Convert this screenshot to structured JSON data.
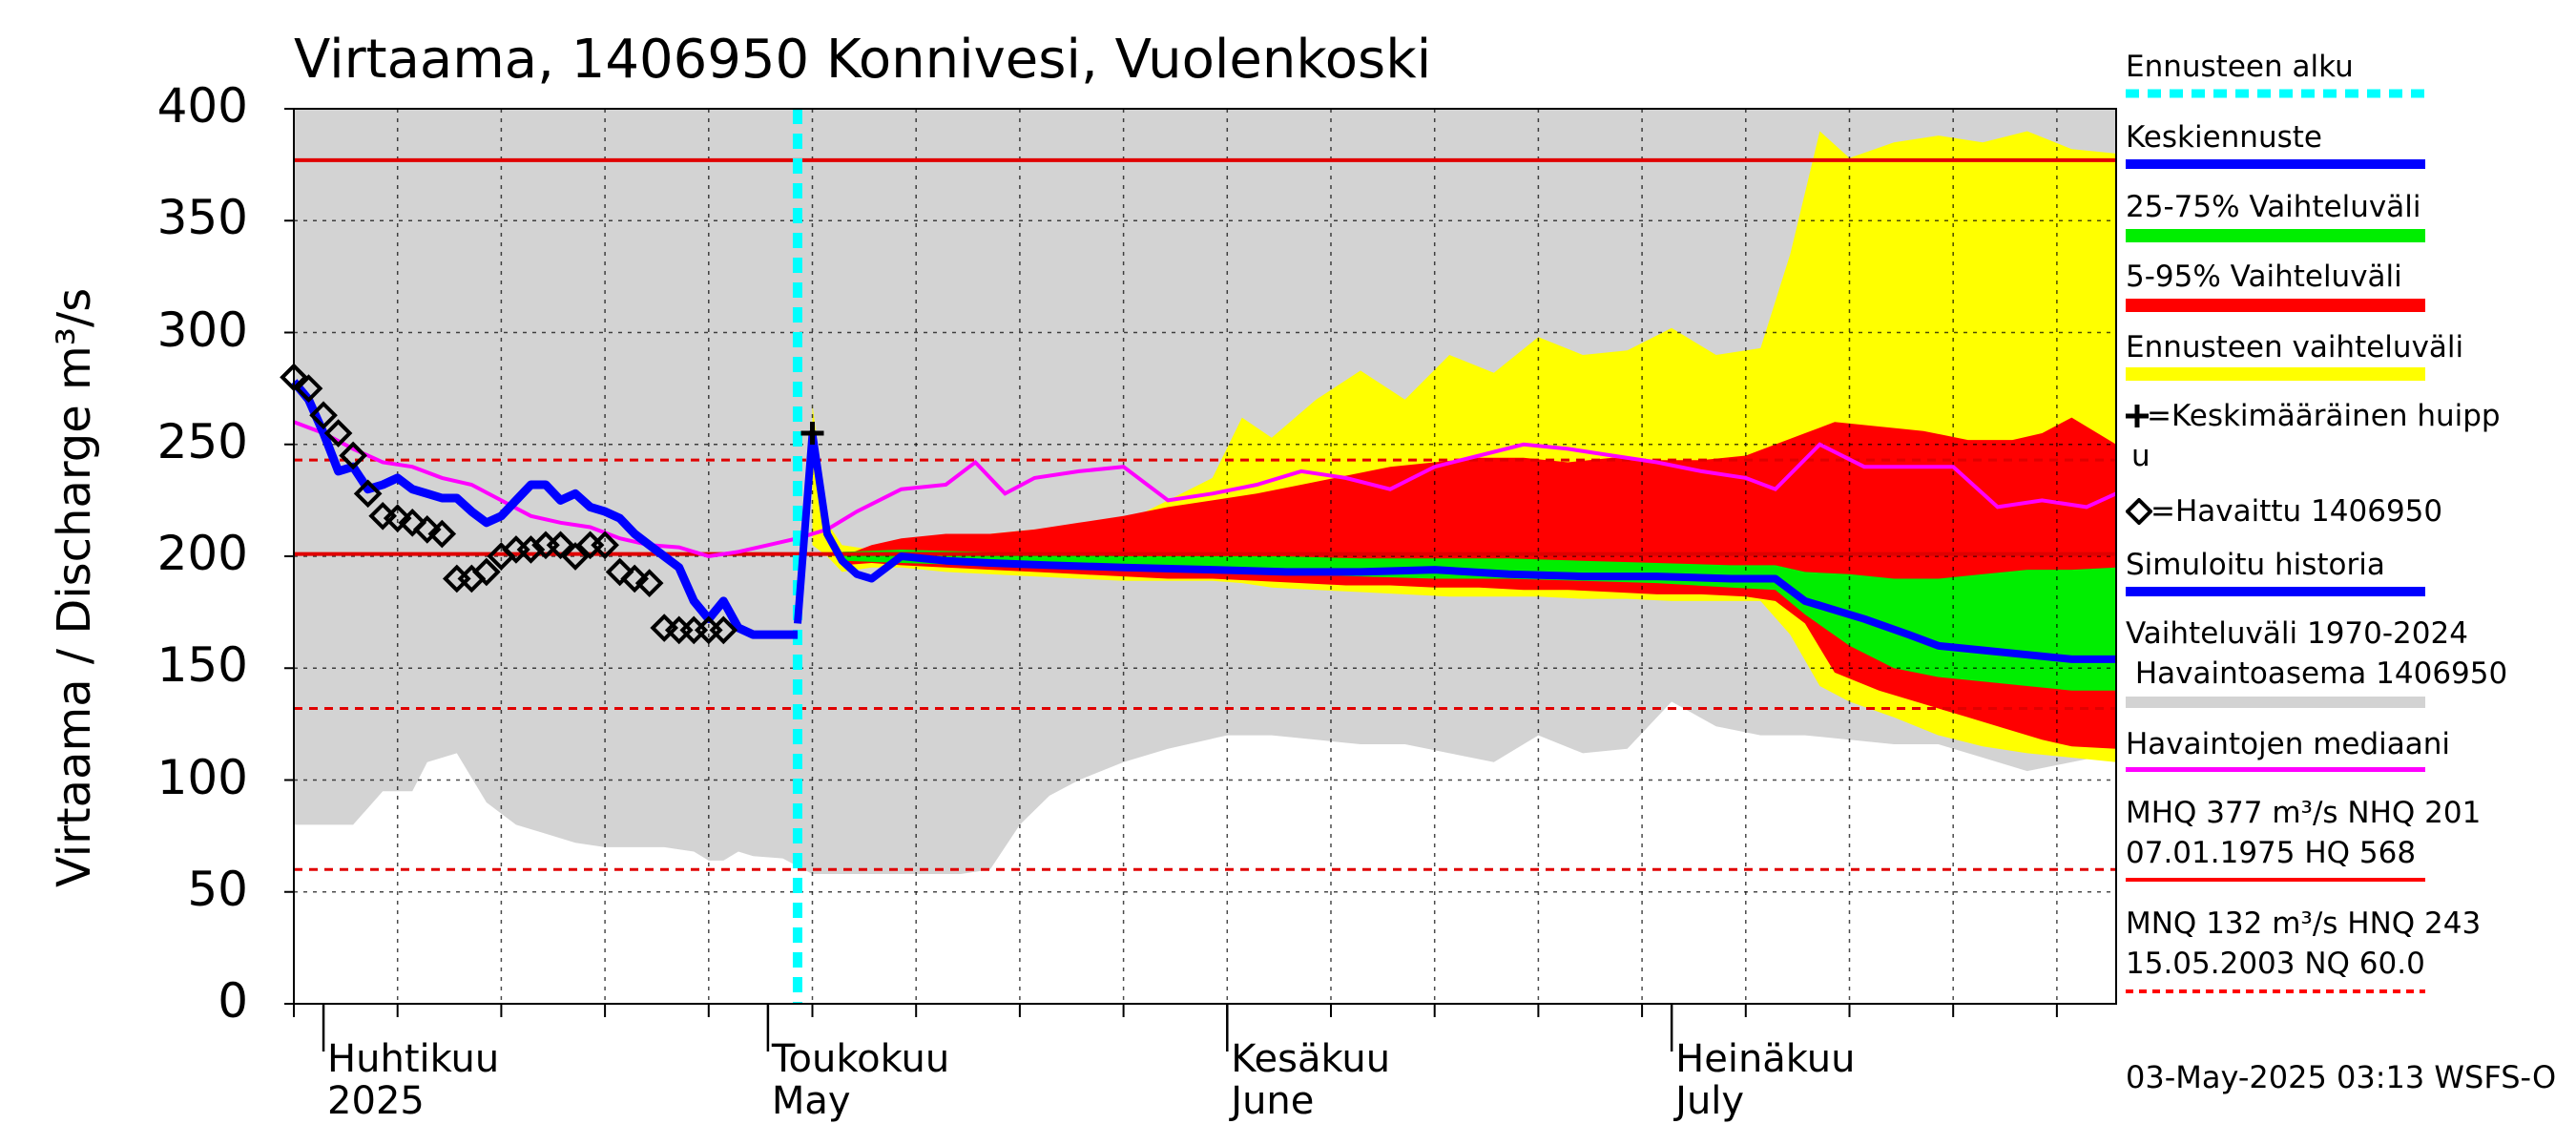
{
  "chart_data": {
    "type": "area",
    "title": "Virtaama, 1406950 Konnivesi, Vuolenkoski",
    "ylabel": "Virtaama / Discharge    m³/s",
    "ylim": [
      0,
      400
    ],
    "yticks": [
      "400",
      "350",
      "300",
      "250",
      "200",
      "150",
      "100",
      "50",
      "0"
    ],
    "xlim": [
      "2025-03-30",
      "2025-07-31"
    ],
    "month_labels": [
      {
        "date": "2025-04-01",
        "fi": "Huhtikuu",
        "en": "2025"
      },
      {
        "date": "2025-05-01",
        "fi": "Toukokuu",
        "en": "May"
      },
      {
        "date": "2025-06-01",
        "fi": "Kesäkuu",
        "en": "June"
      },
      {
        "date": "2025-07-01",
        "fi": "Heinäkuu",
        "en": "July"
      }
    ],
    "grid": true,
    "forecast_start": "2025-05-03",
    "reference_lines": [
      {
        "name": "MHQ",
        "value": 377,
        "style": "solid"
      },
      {
        "name": "NHQ",
        "value": 201,
        "style": "solid"
      },
      {
        "name": "HNQ",
        "value": 243,
        "style": "dashed"
      },
      {
        "name": "MNQ",
        "value": 132,
        "style": "dashed"
      },
      {
        "name": "NQ",
        "value": 60.0,
        "style": "dashed"
      }
    ],
    "historical_range": {
      "name": "Vaihteluväli 1970-2024 Havaintoasema 1406950",
      "x": [
        "2025-03-30",
        "2025-04-01",
        "2025-04-03",
        "2025-04-05",
        "2025-04-06",
        "2025-04-07",
        "2025-04-08",
        "2025-04-10",
        "2025-04-12",
        "2025-04-14",
        "2025-04-16",
        "2025-04-18",
        "2025-04-20",
        "2025-04-22",
        "2025-04-24",
        "2025-04-26",
        "2025-04-27",
        "2025-04-28",
        "2025-04-29",
        "2025-04-30",
        "2025-05-02",
        "2025-05-04",
        "2025-05-06",
        "2025-05-08",
        "2025-05-10",
        "2025-05-12",
        "2025-05-14",
        "2025-05-16",
        "2025-05-18",
        "2025-05-20",
        "2025-05-22",
        "2025-05-25",
        "2025-05-28",
        "2025-06-01",
        "2025-06-04",
        "2025-06-07",
        "2025-06-10",
        "2025-06-13",
        "2025-06-16",
        "2025-06-19",
        "2025-06-22",
        "2025-06-25",
        "2025-06-28",
        "2025-07-01",
        "2025-07-04",
        "2025-07-07",
        "2025-07-10",
        "2025-07-13",
        "2025-07-16",
        "2025-07-19",
        "2025-07-22",
        "2025-07-25",
        "2025-07-28",
        "2025-07-31"
      ],
      "low": [
        80,
        80,
        80,
        95,
        95,
        95,
        108,
        112,
        90,
        80,
        76,
        72,
        70,
        70,
        70,
        68,
        64,
        64,
        68,
        66,
        65,
        58,
        58,
        58,
        58,
        58,
        58,
        60,
        80,
        93,
        100,
        108,
        114,
        120,
        120,
        118,
        116,
        116,
        112,
        108,
        120,
        112,
        114,
        135,
        124,
        120,
        120,
        118,
        116,
        116,
        110,
        104,
        108,
        112
      ],
      "high": [
        400,
        400,
        400,
        400,
        400,
        400,
        400,
        400,
        400,
        400,
        400,
        400,
        400,
        400,
        400,
        400,
        400,
        400,
        400,
        400,
        400,
        400,
        400,
        400,
        400,
        400,
        400,
        400,
        400,
        400,
        400,
        400,
        400,
        400,
        400,
        400,
        400,
        400,
        400,
        400,
        400,
        400,
        400,
        400,
        400,
        400,
        400,
        400,
        400,
        400,
        400,
        400,
        400,
        400
      ]
    },
    "series": [
      {
        "name": "Ennusteen vaihteluväli",
        "color": "#ffff00",
        "x": [
          "2025-05-04",
          "2025-05-05",
          "2025-05-06",
          "2025-05-08",
          "2025-05-10",
          "2025-05-13",
          "2025-05-16",
          "2025-05-19",
          "2025-05-22",
          "2025-05-25",
          "2025-05-28",
          "2025-05-31",
          "2025-06-02",
          "2025-06-04",
          "2025-06-07",
          "2025-06-10",
          "2025-06-13",
          "2025-06-16",
          "2025-06-19",
          "2025-06-22",
          "2025-06-25",
          "2025-06-28",
          "2025-07-01",
          "2025-07-04",
          "2025-07-07",
          "2025-07-09",
          "2025-07-11",
          "2025-07-13",
          "2025-07-16",
          "2025-07-19",
          "2025-07-22",
          "2025-07-25",
          "2025-07-28",
          "2025-07-31"
        ],
        "low": [
          205,
          200,
          193,
          195,
          195,
          193,
          192,
          191,
          190,
          189,
          189,
          189,
          188,
          186,
          185,
          184,
          183,
          182,
          182,
          182,
          181,
          181,
          180,
          180,
          180,
          165,
          142,
          135,
          128,
          120,
          115,
          112,
          110,
          108
        ],
        "high": [
          268,
          215,
          205,
          203,
          205,
          208,
          210,
          212,
          212,
          215,
          225,
          235,
          262,
          253,
          270,
          283,
          270,
          290,
          282,
          298,
          290,
          292,
          302,
          290,
          293,
          335,
          390,
          378,
          385,
          388,
          385,
          390,
          382,
          380
        ]
      },
      {
        "name": "5-95% Vaihteluväli",
        "color": "#ff0000",
        "x": [
          "2025-05-06",
          "2025-05-08",
          "2025-05-10",
          "2025-05-13",
          "2025-05-16",
          "2025-05-19",
          "2025-05-22",
          "2025-05-25",
          "2025-05-28",
          "2025-05-31",
          "2025-06-03",
          "2025-06-06",
          "2025-06-09",
          "2025-06-12",
          "2025-06-15",
          "2025-06-18",
          "2025-06-21",
          "2025-06-24",
          "2025-06-27",
          "2025-06-30",
          "2025-07-03",
          "2025-07-06",
          "2025-07-08",
          "2025-07-10",
          "2025-07-12",
          "2025-07-15",
          "2025-07-18",
          "2025-07-21",
          "2025-07-24",
          "2025-07-26",
          "2025-07-28",
          "2025-07-31"
        ],
        "low": [
          196,
          197,
          196,
          195,
          194,
          193,
          192,
          191,
          190,
          190,
          189,
          188,
          187,
          187,
          186,
          186,
          185,
          185,
          184,
          183,
          183,
          182,
          180,
          170,
          148,
          140,
          134,
          128,
          122,
          118,
          115,
          114
        ],
        "high": [
          200,
          205,
          208,
          210,
          210,
          212,
          215,
          218,
          222,
          225,
          228,
          232,
          236,
          240,
          242,
          244,
          244,
          242,
          244,
          243,
          243,
          245,
          250,
          255,
          260,
          258,
          256,
          252,
          252,
          255,
          262,
          250
        ]
      },
      {
        "name": "25-75% Vaihteluväli",
        "color": "#00ee00",
        "x": [
          "2025-05-06",
          "2025-05-10",
          "2025-05-15",
          "2025-05-20",
          "2025-05-25",
          "2025-05-31",
          "2025-06-05",
          "2025-06-10",
          "2025-06-15",
          "2025-06-20",
          "2025-06-25",
          "2025-06-30",
          "2025-07-05",
          "2025-07-08",
          "2025-07-10",
          "2025-07-13",
          "2025-07-16",
          "2025-07-19",
          "2025-07-22",
          "2025-07-25",
          "2025-07-28",
          "2025-07-31"
        ],
        "low": [
          198,
          197,
          196,
          195,
          194,
          193,
          192,
          191,
          190,
          190,
          189,
          188,
          186,
          185,
          174,
          160,
          150,
          146,
          144,
          142,
          140,
          140
        ],
        "high": [
          202,
          203,
          202,
          201,
          200,
          200,
          200,
          199,
          199,
          199,
          198,
          197,
          196,
          196,
          193,
          192,
          190,
          190,
          192,
          194,
          194,
          195
        ]
      },
      {
        "name": "Havaintojen mediaani",
        "color": "#ff00ff",
        "x": [
          "2025-03-30",
          "2025-04-01",
          "2025-04-03",
          "2025-04-05",
          "2025-04-07",
          "2025-04-09",
          "2025-04-11",
          "2025-04-13",
          "2025-04-15",
          "2025-04-17",
          "2025-04-19",
          "2025-04-21",
          "2025-04-23",
          "2025-04-25",
          "2025-04-27",
          "2025-04-29",
          "2025-05-01",
          "2025-05-03",
          "2025-05-05",
          "2025-05-07",
          "2025-05-10",
          "2025-05-13",
          "2025-05-15",
          "2025-05-17",
          "2025-05-19",
          "2025-05-22",
          "2025-05-25",
          "2025-05-28",
          "2025-05-31",
          "2025-06-03",
          "2025-06-06",
          "2025-06-09",
          "2025-06-12",
          "2025-06-15",
          "2025-06-18",
          "2025-06-21",
          "2025-06-24",
          "2025-06-27",
          "2025-06-30",
          "2025-07-03",
          "2025-07-06",
          "2025-07-08",
          "2025-07-11",
          "2025-07-14",
          "2025-07-17",
          "2025-07-20",
          "2025-07-23",
          "2025-07-26",
          "2025-07-29",
          "2025-07-31"
        ],
        "values": [
          260,
          255,
          248,
          242,
          240,
          235,
          232,
          225,
          218,
          215,
          213,
          208,
          205,
          204,
          200,
          202,
          205,
          208,
          212,
          220,
          230,
          232,
          242,
          228,
          235,
          238,
          240,
          225,
          228,
          232,
          238,
          235,
          230,
          240,
          245,
          250,
          248,
          245,
          242,
          238,
          235,
          230,
          250,
          240,
          240,
          240,
          222,
          225,
          222,
          228
        ]
      },
      {
        "name": "Simuloitu historia",
        "color": "#0000ff",
        "x": [
          "2025-03-30",
          "2025-03-31",
          "2025-04-01",
          "2025-04-02",
          "2025-04-03",
          "2025-04-04",
          "2025-04-05",
          "2025-04-06",
          "2025-04-07",
          "2025-04-08",
          "2025-04-09",
          "2025-04-10",
          "2025-04-11",
          "2025-04-12",
          "2025-04-13",
          "2025-04-14",
          "2025-04-15",
          "2025-04-16",
          "2025-04-17",
          "2025-04-18",
          "2025-04-19",
          "2025-04-20",
          "2025-04-21",
          "2025-04-22",
          "2025-04-23",
          "2025-04-24",
          "2025-04-25",
          "2025-04-26",
          "2025-04-27",
          "2025-04-28",
          "2025-04-29",
          "2025-04-30",
          "2025-05-01",
          "2025-05-02",
          "2025-05-03"
        ],
        "values": [
          278,
          270,
          255,
          238,
          240,
          230,
          232,
          235,
          230,
          228,
          226,
          226,
          220,
          215,
          218,
          225,
          232,
          232,
          225,
          228,
          222,
          220,
          217,
          210,
          205,
          200,
          195,
          180,
          172,
          180,
          168,
          165,
          165,
          165,
          165
        ]
      },
      {
        "name": "Keskiennuste",
        "color": "#0000ff",
        "x": [
          "2025-05-03",
          "2025-05-04",
          "2025-05-05",
          "2025-05-06",
          "2025-05-07",
          "2025-05-08",
          "2025-05-10",
          "2025-05-13",
          "2025-05-16",
          "2025-05-20",
          "2025-05-25",
          "2025-05-31",
          "2025-06-05",
          "2025-06-10",
          "2025-06-15",
          "2025-06-20",
          "2025-06-25",
          "2025-06-30",
          "2025-07-05",
          "2025-07-08",
          "2025-07-10",
          "2025-07-12",
          "2025-07-14",
          "2025-07-17",
          "2025-07-19",
          "2025-07-22",
          "2025-07-25",
          "2025-07-28",
          "2025-07-31"
        ],
        "values": [
          170,
          255,
          210,
          198,
          192,
          190,
          200,
          198,
          197,
          196,
          195,
          194,
          193,
          193,
          194,
          192,
          191,
          191,
          190,
          190,
          180,
          176,
          172,
          165,
          160,
          158,
          156,
          154,
          154
        ]
      },
      {
        "name": "Havaittu 1406950",
        "color": "#000000",
        "x": [
          "2025-03-30",
          "2025-03-31",
          "2025-04-01",
          "2025-04-02",
          "2025-04-03",
          "2025-04-04",
          "2025-04-05",
          "2025-04-06",
          "2025-04-07",
          "2025-04-08",
          "2025-04-09",
          "2025-04-10",
          "2025-04-11",
          "2025-04-12",
          "2025-04-13",
          "2025-04-14",
          "2025-04-15",
          "2025-04-16",
          "2025-04-17",
          "2025-04-18",
          "2025-04-19",
          "2025-04-20",
          "2025-04-21",
          "2025-04-22",
          "2025-04-23",
          "2025-04-24",
          "2025-04-25",
          "2025-04-26",
          "2025-04-27",
          "2025-04-28"
        ],
        "values": [
          280,
          275,
          263,
          255,
          245,
          228,
          218,
          217,
          215,
          212,
          210,
          190,
          190,
          193,
          200,
          203,
          203,
          205,
          205,
          200,
          205,
          205,
          193,
          190,
          188,
          168,
          167,
          167,
          167,
          167
        ]
      }
    ],
    "peak_marker": {
      "name": "Keskimääräinen huippu",
      "x": "2025-05-04",
      "y": 255
    }
  },
  "legend": {
    "forecast_start": {
      "label": "Ennusteen alku",
      "color": "#00ffff"
    },
    "mean_forecast": {
      "label": "Keskiennuste",
      "color": "#0000ff"
    },
    "iqr": {
      "label": "25-75% Vaihteluväli",
      "color": "#00ee00"
    },
    "p5_95": {
      "label": "5-95% Vaihteluväli",
      "color": "#ff0000"
    },
    "forecast_range": {
      "label": "Ennusteen vaihteluväli",
      "color": "#ffff00"
    },
    "peak_line1": "=Keskimääräinen huipp",
    "peak_line2": "u",
    "observed": "=Havaittu 1406950",
    "simulated": {
      "label": "Simuloitu historia",
      "color": "#0000ff"
    },
    "hist_range_line1": "Vaihteluväli 1970-2024",
    "hist_range_line2": " Havaintoasema 1406950",
    "hist_range_color": "#d3d3d3",
    "median": {
      "label": "Havaintojen mediaani",
      "color": "#ff00ff"
    },
    "stats1_line1": "MHQ  377 m³/s NHQ  201",
    "stats1_line2": "07.01.1975 HQ  568",
    "stats1_color": "#ff0000",
    "stats2_line1": "MNQ  132 m³/s HNQ  243",
    "stats2_line2": "15.05.2003 NQ 60.0",
    "stats2_color": "#ff0000"
  },
  "footer": "03-May-2025 03:13 WSFS-O"
}
